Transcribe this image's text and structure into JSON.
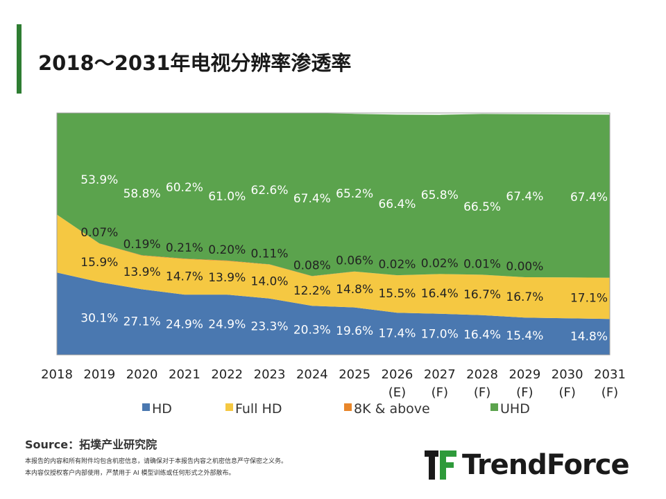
{
  "page": {
    "title": "2018～2031年电视分辨率渗透率",
    "source": "Source：拓墣产业研究院",
    "disclaimer_line1": "本报告的内容和所有附件均包含机密信息，请确保对于本报告内容之机密信息严守保密之义务。",
    "disclaimer_line2": "本内容仅授权客户内部使用，严禁用于 AI 模型训练或任何形式之外部散布。",
    "brand": "TrendForce",
    "watermark": "TrendForce"
  },
  "chart_data": {
    "type": "area",
    "stacked": true,
    "percent_stacked": true,
    "categories": [
      "2018",
      "2019",
      "2020",
      "2021",
      "2022",
      "2023",
      "2024",
      "2025",
      "2026 (E)",
      "2027 (F)",
      "2028 (F)",
      "2029 (F)",
      "2030 (F)",
      "2031 (F)"
    ],
    "series": [
      {
        "name": "HD",
        "color": "#4a78b0",
        "values": [
          34.0,
          30.1,
          27.1,
          24.9,
          24.9,
          23.3,
          20.3,
          19.6,
          17.4,
          17.0,
          16.4,
          15.4,
          15.1,
          14.8
        ],
        "labels": [
          "",
          "30.1%",
          "27.1%",
          "24.9%",
          "24.9%",
          "23.3%",
          "20.3%",
          "19.6%",
          "17.4%",
          "17.0%",
          "16.4%",
          "15.4%",
          "",
          "14.8%"
        ]
      },
      {
        "name": "Full HD",
        "color": "#f5c842",
        "values": [
          24.0,
          15.9,
          13.9,
          14.7,
          13.9,
          14.0,
          12.2,
          14.8,
          15.5,
          16.4,
          16.7,
          16.7,
          16.9,
          17.1
        ],
        "labels": [
          "",
          "15.9%",
          "13.9%",
          "14.7%",
          "13.9%",
          "14.0%",
          "12.2%",
          "14.8%",
          "15.5%",
          "16.4%",
          "16.7%",
          "16.7%",
          "",
          "17.1%"
        ]
      },
      {
        "name": "8K & above",
        "color": "#e8862a",
        "values": [
          0.0,
          0.07,
          0.19,
          0.21,
          0.2,
          0.11,
          0.08,
          0.06,
          0.02,
          0.02,
          0.01,
          0.0,
          0.0,
          0.0
        ],
        "labels": [
          "",
          "0.07%",
          "0.19%",
          "0.21%",
          "0.20%",
          "0.11%",
          "0.08%",
          "0.06%",
          "0.02%",
          "0.02%",
          "0.01%",
          "0.00%",
          "",
          ""
        ]
      },
      {
        "name": "UHD",
        "color": "#5ba34d",
        "values": [
          42.0,
          53.9,
          58.8,
          60.2,
          61.0,
          62.6,
          67.4,
          65.2,
          66.4,
          65.8,
          66.5,
          67.4,
          67.4,
          67.4
        ],
        "labels": [
          "",
          "53.9%",
          "58.8%",
          "60.2%",
          "61.0%",
          "62.6%",
          "67.4%",
          "65.2%",
          "66.4%",
          "65.8%",
          "66.5%",
          "67.4%",
          "",
          "67.4%"
        ]
      }
    ],
    "ylim": [
      0,
      100
    ],
    "legend_position": "bottom",
    "grid": false
  }
}
